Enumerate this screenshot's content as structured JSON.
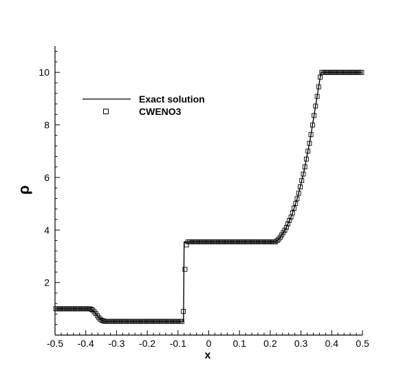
{
  "chart_data": {
    "type": "line",
    "title": "",
    "xlabel": "x",
    "ylabel": "ρ",
    "xlim": [
      -0.5,
      0.5
    ],
    "ylim": [
      0,
      11
    ],
    "xticks": [
      -0.5,
      -0.4,
      -0.3,
      -0.2,
      -0.1,
      0,
      0.1,
      0.2,
      0.3,
      0.4,
      0.5
    ],
    "xtick_labels": [
      "-0.5",
      "-0.4",
      "-0.3",
      "-0.2",
      "-0.1",
      "0",
      "0.1",
      "0.2",
      "0.3",
      "0.4",
      "0.5"
    ],
    "yticks": [
      2,
      4,
      6,
      8,
      10
    ],
    "ytick_labels": [
      "2",
      "4",
      "6",
      "8",
      "10"
    ],
    "grid": false,
    "legend_position": "top-left",
    "series": [
      {
        "name": "Exact solution",
        "style": "line",
        "color": "#000000",
        "x": [
          -0.5,
          -0.385,
          -0.378,
          -0.37,
          -0.362,
          -0.355,
          -0.348,
          -0.34,
          -0.333,
          -0.082,
          -0.08,
          -0.076,
          0.218,
          0.23,
          0.25,
          0.27,
          0.29,
          0.31,
          0.33,
          0.35,
          0.365,
          0.5
        ],
        "y": [
          1.0,
          1.0,
          0.96,
          0.86,
          0.73,
          0.62,
          0.56,
          0.53,
          0.52,
          0.52,
          3.55,
          3.55,
          3.55,
          3.68,
          4.04,
          4.56,
          5.28,
          6.25,
          7.45,
          8.9,
          10.0,
          10.0
        ]
      },
      {
        "name": "CWENO3",
        "style": "markers",
        "marker": "square-open",
        "color": "#000000",
        "x_start": -0.5,
        "x_end": 0.5,
        "n_points": 200
      }
    ]
  }
}
